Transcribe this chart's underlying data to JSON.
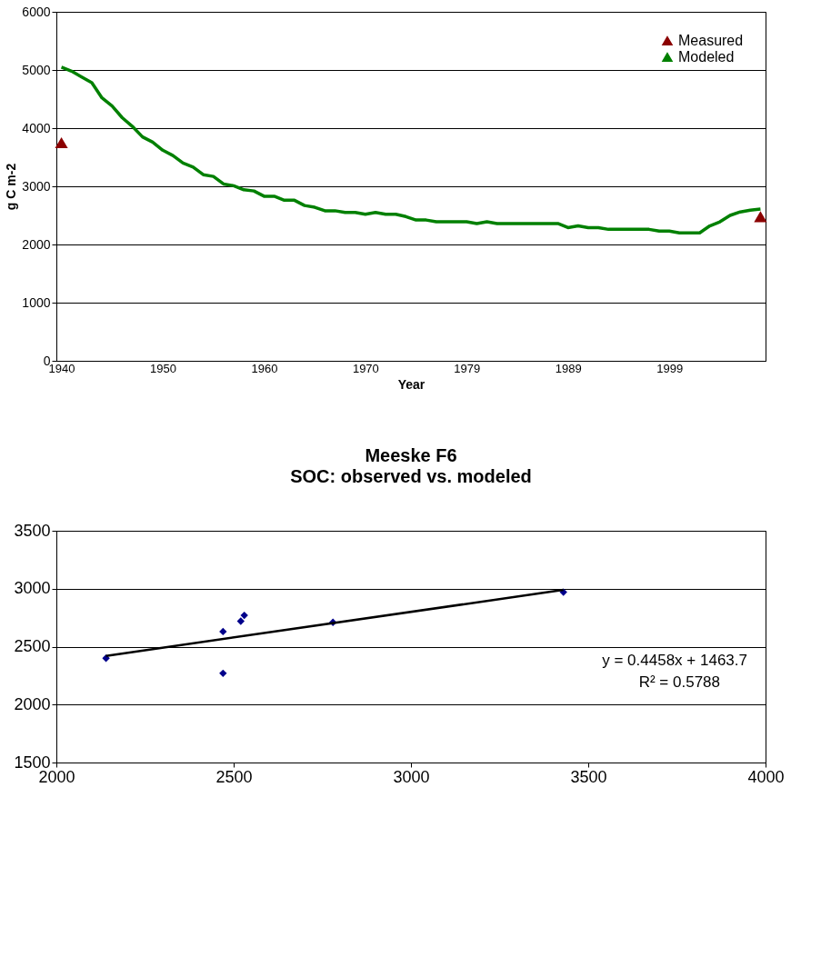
{
  "chart_data": [
    {
      "type": "line",
      "xlabel": "Year",
      "ylabel": "g C m-2",
      "categories": [
        "1940",
        null,
        null,
        null,
        null,
        null,
        null,
        null,
        null,
        null,
        "1950",
        null,
        null,
        null,
        null,
        null,
        null,
        null,
        null,
        null,
        "1960",
        null,
        null,
        null,
        null,
        null,
        null,
        null,
        null,
        null,
        "1970",
        null,
        null,
        null,
        null,
        null,
        null,
        null,
        null,
        null,
        "1979",
        null,
        null,
        null,
        null,
        null,
        null,
        null,
        null,
        null,
        "1989",
        null,
        null,
        null,
        null,
        null,
        null,
        null,
        null,
        null,
        "1999",
        null,
        null,
        null,
        null,
        null,
        null,
        null,
        null,
        null
      ],
      "series": [
        {
          "name": "Measured",
          "type": "scatter",
          "marker": "triangle",
          "color": "#8b0000",
          "values": [
            3750,
            null,
            null,
            null,
            null,
            null,
            null,
            null,
            null,
            null,
            null,
            null,
            null,
            null,
            null,
            null,
            null,
            null,
            null,
            null,
            null,
            null,
            null,
            null,
            null,
            null,
            null,
            null,
            null,
            null,
            null,
            null,
            null,
            null,
            null,
            null,
            null,
            null,
            null,
            null,
            null,
            null,
            null,
            null,
            null,
            null,
            null,
            null,
            null,
            null,
            null,
            null,
            null,
            null,
            null,
            null,
            null,
            null,
            null,
            null,
            null,
            null,
            null,
            null,
            null,
            null,
            null,
            null,
            null,
            2480
          ]
        },
        {
          "name": "Modeled",
          "type": "line",
          "color": "#008000",
          "values": [
            5050,
            4980,
            4880,
            4780,
            4520,
            4380,
            4180,
            4030,
            3850,
            3760,
            3620,
            3530,
            3400,
            3330,
            3200,
            3170,
            3040,
            3010,
            2940,
            2920,
            2830,
            2830,
            2760,
            2760,
            2670,
            2640,
            2580,
            2580,
            2550,
            2550,
            2520,
            2550,
            2520,
            2520,
            2480,
            2420,
            2420,
            2390,
            2390,
            2390,
            2390,
            2360,
            2390,
            2360,
            2360,
            2360,
            2360,
            2360,
            2360,
            2360,
            2290,
            2320,
            2290,
            2290,
            2260,
            2260,
            2260,
            2260,
            2260,
            2230,
            2230,
            2200,
            2200,
            2200,
            2320,
            2390,
            2500,
            2560,
            2590,
            2610
          ]
        }
      ],
      "ylim": [
        0,
        6000
      ],
      "yticks": [
        0,
        1000,
        2000,
        3000,
        4000,
        5000,
        6000
      ],
      "grid": "y",
      "legend": "top right"
    },
    {
      "type": "scatter",
      "title": "Meeske F6",
      "subtitle": "SOC: observed vs. modeled",
      "series": [
        {
          "type": "scatter",
          "marker": "diamond",
          "color": "#00008b",
          "x": [
            2140,
            2470,
            2470,
            2520,
            2530,
            2780,
            3430
          ],
          "values": [
            2400,
            2630,
            2270,
            2720,
            2770,
            2710,
            2970
          ]
        },
        {
          "type": "line",
          "color": "#000000",
          "x": [
            2140,
            3430
          ],
          "values": [
            2420,
            2990
          ]
        }
      ],
      "annotations": [
        "y = 0.4458x + 1463.7",
        "R² = 0.5788"
      ],
      "xlim": [
        2000,
        4000
      ],
      "xticks": [
        2000,
        2500,
        3000,
        3500,
        4000
      ],
      "ylim": [
        1500,
        3500
      ],
      "yticks": [
        1500,
        2000,
        2500,
        3000,
        3500
      ],
      "grid": "y"
    }
  ]
}
